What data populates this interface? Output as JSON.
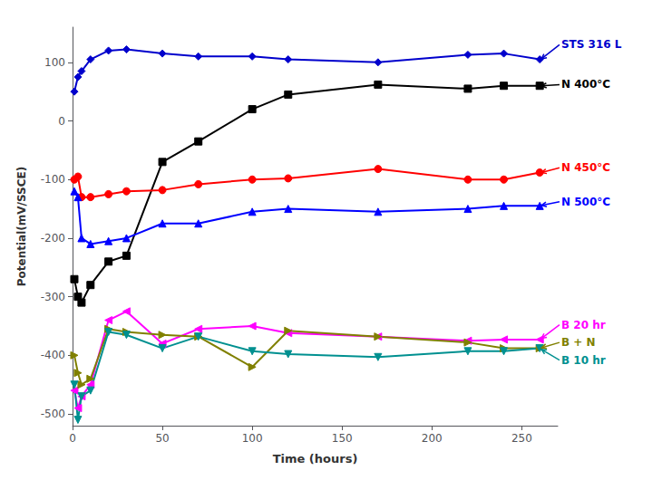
{
  "chart_data": {
    "type": "line",
    "xlabel": "Time (hours)",
    "ylabel": "Potential(mV/SSCE)",
    "x": [
      1,
      3,
      5,
      10,
      20,
      30,
      50,
      70,
      100,
      120,
      170,
      220,
      240,
      260
    ],
    "xlim": [
      0,
      270
    ],
    "ylim": [
      -520,
      160
    ],
    "xticks": [
      0,
      50,
      100,
      150,
      200,
      250
    ],
    "yticks": [
      -500,
      -400,
      -300,
      -200,
      -100,
      0,
      100
    ],
    "grid": false,
    "series": [
      {
        "name": "STS 316 L",
        "color": "#0000CC",
        "marker": "diamond",
        "values": [
          50,
          75,
          85,
          105,
          120,
          122,
          115,
          110,
          110,
          105,
          100,
          113,
          115,
          105
        ]
      },
      {
        "name": "N 400°C",
        "color": "#000000",
        "marker": "square",
        "values": [
          -270,
          -300,
          -310,
          -280,
          -240,
          -230,
          -70,
          -35,
          20,
          45,
          62,
          55,
          60,
          60
        ]
      },
      {
        "name": "N 450°C",
        "color": "#FF0000",
        "marker": "circle",
        "values": [
          -100,
          -95,
          -130,
          -130,
          -125,
          -120,
          -118,
          -108,
          -100,
          -98,
          -82,
          -100,
          -100,
          -88
        ]
      },
      {
        "name": "N 500°C",
        "color": "#0000FF",
        "marker": "triangle-up",
        "values": [
          -120,
          -130,
          -200,
          -210,
          -205,
          -200,
          -175,
          -175,
          -155,
          -150,
          -155,
          -150,
          -145,
          -145
        ]
      },
      {
        "name": "B 20 hr",
        "color": "#FF00FF",
        "marker": "triangle-left",
        "values": [
          -460,
          -490,
          -470,
          -450,
          -340,
          -325,
          -380,
          -355,
          -350,
          -362,
          -368,
          -375,
          -373,
          -373
        ]
      },
      {
        "name": "B + N",
        "color": "#808000",
        "marker": "triangle-right",
        "values": [
          -400,
          -430,
          -450,
          -440,
          -355,
          -360,
          -365,
          -368,
          -420,
          -358,
          -368,
          -378,
          -388,
          -388
        ]
      },
      {
        "name": "B 10 hr",
        "color": "#009090",
        "marker": "triangle-down",
        "values": [
          -450,
          -510,
          -470,
          -460,
          -360,
          -365,
          -388,
          -368,
          -393,
          -398,
          -403,
          -393,
          -393,
          -388
        ]
      }
    ],
    "annotations": [
      {
        "text": "STS 316 L",
        "color": "#0000CC",
        "xy": [
          261,
          106
        ],
        "xytext": [
          272,
          130
        ]
      },
      {
        "text": "N 400°C",
        "color": "#000000",
        "xy": [
          261,
          60
        ],
        "xytext": [
          272,
          62
        ]
      },
      {
        "text": "N 450°C",
        "color": "#FF0000",
        "xy": [
          261,
          -88
        ],
        "xytext": [
          272,
          -80
        ]
      },
      {
        "text": "N 500°C",
        "color": "#0000FF",
        "xy": [
          261,
          -144
        ],
        "xytext": [
          272,
          -138
        ]
      },
      {
        "text": "B 20 hr",
        "color": "#FF00FF",
        "xy": [
          261,
          -371
        ],
        "xytext": [
          272,
          -348
        ]
      },
      {
        "text": "B + N",
        "color": "#808000",
        "xy": [
          261,
          -387
        ],
        "xytext": [
          272,
          -378
        ]
      },
      {
        "text": "B 10 hr",
        "color": "#009090",
        "xy": [
          261,
          -390
        ],
        "xytext": [
          272,
          -408
        ]
      }
    ]
  }
}
